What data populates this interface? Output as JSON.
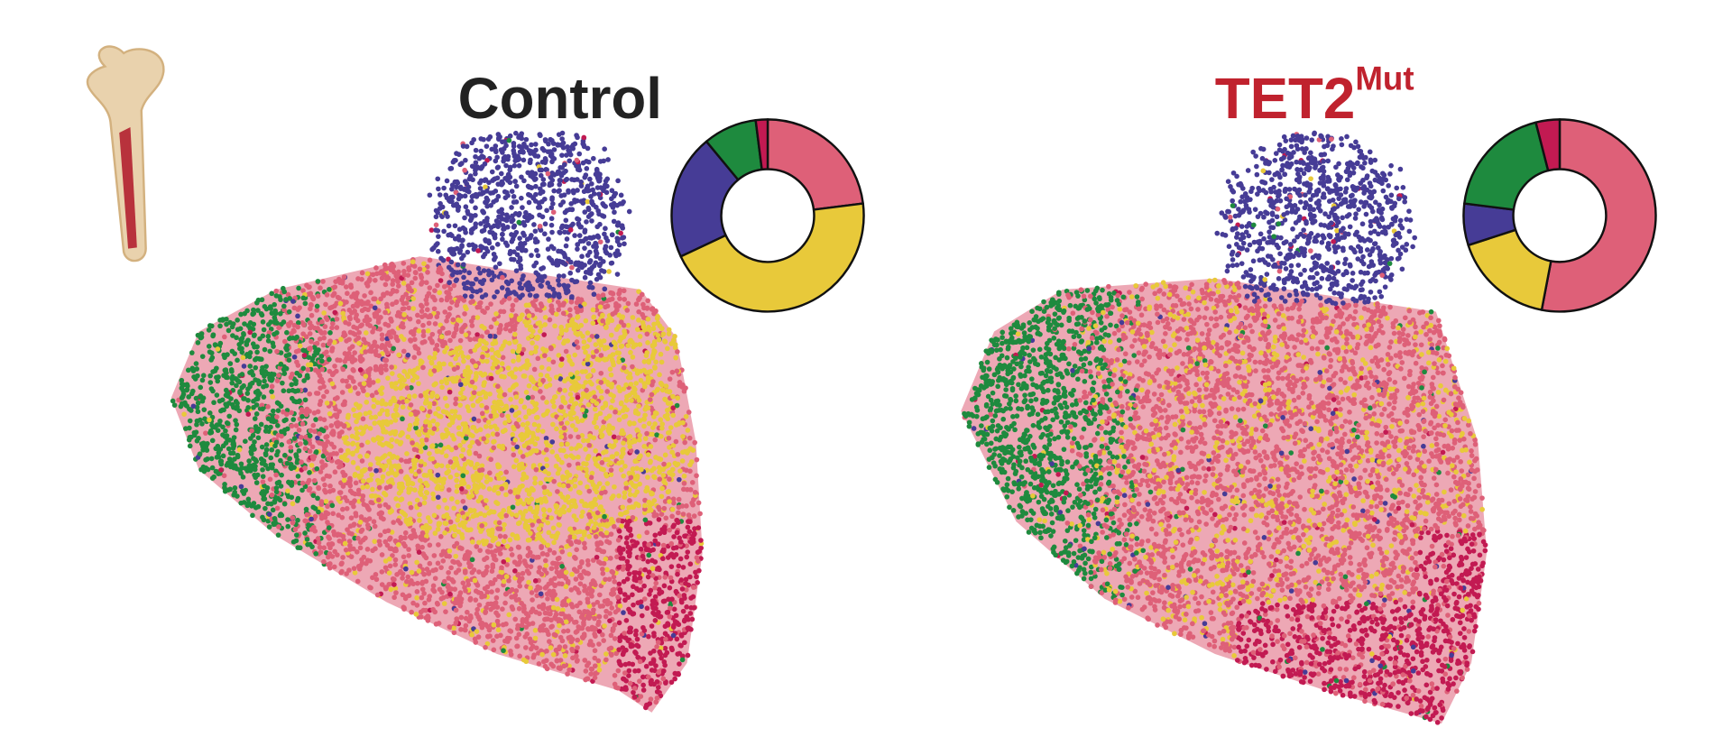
{
  "chart_data": [
    {
      "type": "pie",
      "title": "Control",
      "title_color": "#222222",
      "values": [
        23,
        45,
        21,
        9,
        2
      ],
      "colors": [
        "#de6078",
        "#e8c93a",
        "#463c96",
        "#1e8a3e",
        "#c21a52"
      ]
    },
    {
      "type": "pie",
      "title": "TET2",
      "title_superscript": "Mut",
      "title_color": "#c0222e",
      "values": [
        53,
        17,
        7,
        19,
        4
      ],
      "colors": [
        "#de6078",
        "#e8c93a",
        "#463c96",
        "#1e8a3e",
        "#c21a52"
      ]
    }
  ]
}
